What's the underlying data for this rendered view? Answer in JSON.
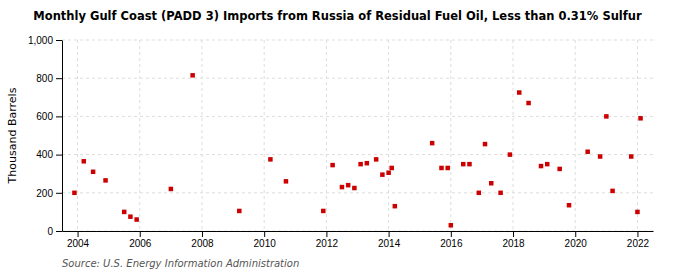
{
  "chart_data": {
    "type": "scatter",
    "title": "Monthly Gulf Coast (PADD 3) Imports from Russia of Residual Fuel Oil, Less than 0.31% Sulfur",
    "ylabel": "Thousand Barrels",
    "source": "Source: U.S. Energy Information Administration",
    "color": "#cc0000",
    "marker": "square",
    "grid": true,
    "xlim": [
      2003.5,
      2022.5
    ],
    "ylim": [
      0,
      1000
    ],
    "xticks": [
      2004,
      2006,
      2008,
      2010,
      2012,
      2014,
      2016,
      2018,
      2020,
      2022
    ],
    "yticks": [
      0,
      200,
      400,
      600,
      800,
      {
        "value": 1000,
        "label": "1,000"
      }
    ],
    "x": [
      2003.9,
      2004.2,
      2004.5,
      2004.9,
      2005.5,
      2005.7,
      2005.9,
      2007.0,
      2007.7,
      2009.2,
      2010.2,
      2010.7,
      2011.9,
      2012.2,
      2012.5,
      2012.7,
      2012.9,
      2013.1,
      2013.3,
      2013.6,
      2013.8,
      2014.0,
      2014.1,
      2014.2,
      2015.4,
      2015.7,
      2015.9,
      2016.0,
      2016.4,
      2016.6,
      2016.9,
      2017.1,
      2017.3,
      2017.6,
      2017.9,
      2018.2,
      2018.5,
      2018.9,
      2019.1,
      2019.5,
      2019.8,
      2020.4,
      2020.8,
      2021.0,
      2021.2,
      2021.8,
      2022.0,
      2022.1
    ],
    "values": [
      200,
      365,
      310,
      265,
      100,
      75,
      60,
      220,
      815,
      105,
      375,
      260,
      105,
      345,
      230,
      240,
      225,
      350,
      355,
      375,
      295,
      305,
      330,
      130,
      460,
      330,
      330,
      30,
      350,
      350,
      200,
      455,
      250,
      200,
      400,
      725,
      670,
      340,
      350,
      325,
      135,
      415,
      390,
      600,
      210,
      390,
      100,
      590
    ]
  }
}
